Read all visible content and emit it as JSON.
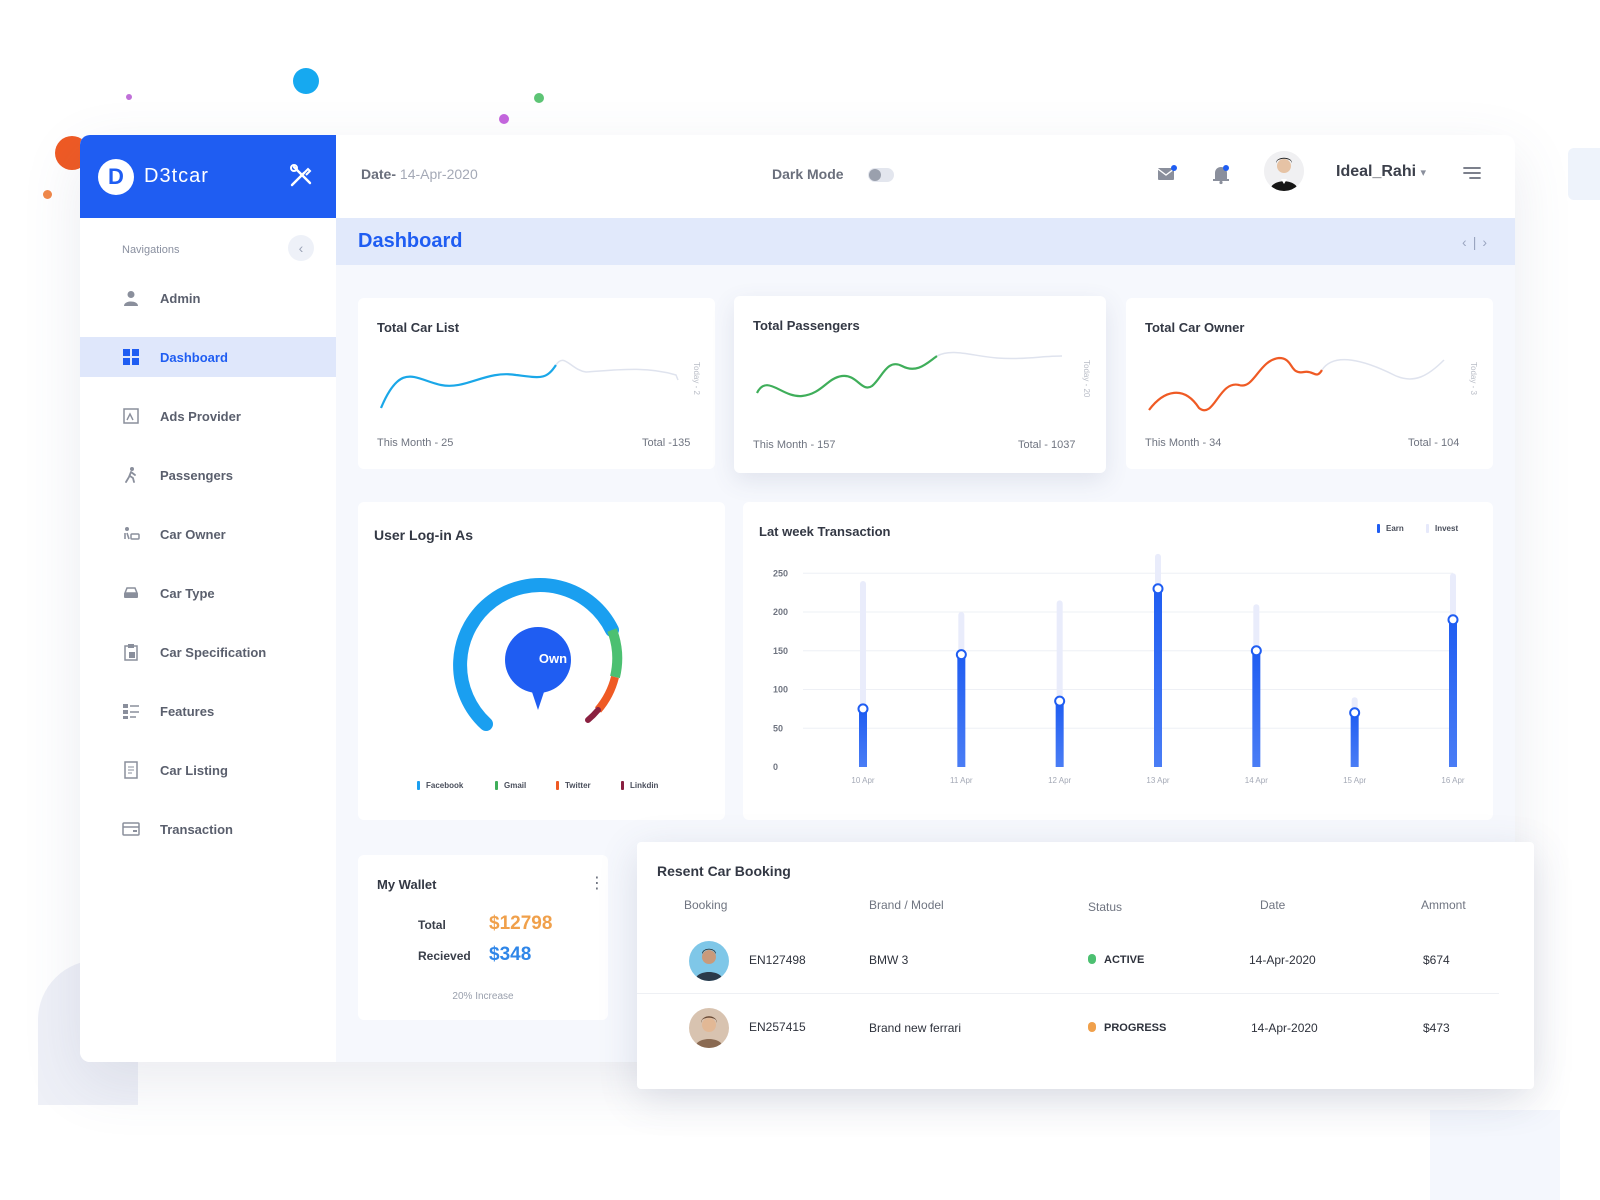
{
  "brand": {
    "name": "D3tcar",
    "logo_letter": "D",
    "color": "#1f5df2"
  },
  "sidebar": {
    "heading": "Navigations",
    "items": [
      {
        "label": "Admin",
        "icon": "user-icon",
        "active": false
      },
      {
        "label": "Dashboard",
        "icon": "grid-icon",
        "active": true
      },
      {
        "label": "Ads Provider",
        "icon": "ads-icon",
        "active": false
      },
      {
        "label": "Passengers",
        "icon": "walking-person-icon",
        "active": false
      },
      {
        "label": "Car Owner",
        "icon": "car-owner-icon",
        "active": false
      },
      {
        "label": "Car Type",
        "icon": "car-icon",
        "active": false
      },
      {
        "label": "Car Specification",
        "icon": "clipboard-icon",
        "active": false
      },
      {
        "label": "Features",
        "icon": "list-icon",
        "active": false
      },
      {
        "label": "Car Listing",
        "icon": "document-icon",
        "active": false
      },
      {
        "label": "Transaction",
        "icon": "card-icon",
        "active": false
      }
    ]
  },
  "topbar": {
    "date_label": "Date-",
    "date_value": "14-Apr-2020",
    "dark_mode_label": "Dark Mode",
    "dark_mode_on": false,
    "username": "Ideal_Rahi",
    "user_caret": "▾"
  },
  "page": {
    "title": "Dashboard",
    "prev": "‹",
    "sep": "|",
    "next": "›"
  },
  "stats": [
    {
      "title": "Total Car List",
      "this_month": "This Month - 25",
      "total": "Total -135",
      "side_label": "Today - 2",
      "color": "#1aa7e8"
    },
    {
      "title": "Total Passengers",
      "this_month": "This Month - 157",
      "total": "Total - 1037",
      "side_label": "Today - 20",
      "color": "#3fae5a"
    },
    {
      "title": "Total Car Owner",
      "this_month": "This Month -  34",
      "total": "Total - 104",
      "side_label": "Today - 3",
      "color": "#ef5a24"
    }
  ],
  "login": {
    "title": "User Log-in As",
    "center_label": "Own",
    "legend": [
      {
        "name": "Facebook",
        "color": "#1a9ff0"
      },
      {
        "name": "Gmail",
        "color": "#3fae5a"
      },
      {
        "name": "Twitter",
        "color": "#ef5a24"
      },
      {
        "name": "Linkdin",
        "color": "#8a2040"
      }
    ]
  },
  "transaction": {
    "title": "Lat week Transaction",
    "legend": [
      {
        "name": "Earn",
        "color": "#1f5df2"
      },
      {
        "name": "Invest",
        "color": "#e6e9fb"
      }
    ]
  },
  "chart_data": {
    "type": "bar",
    "categories": [
      "10 Apr",
      "11 Apr",
      "12 Apr",
      "13 Apr",
      "14 Apr",
      "15 Apr",
      "16 Apr"
    ],
    "series": [
      {
        "name": "Earn",
        "values": [
          75,
          145,
          85,
          230,
          150,
          70,
          190
        ]
      },
      {
        "name": "Invest",
        "values": [
          240,
          200,
          215,
          275,
          210,
          90,
          250
        ]
      }
    ],
    "yticks": [
      0,
      50,
      100,
      150,
      200,
      250
    ],
    "ylim": [
      0,
      280
    ],
    "grid": true,
    "legend_position": "top-right"
  },
  "wallet": {
    "title": "My Wallet",
    "menu": "⋮",
    "total_label": "Total",
    "total_value": "$12798",
    "total_color": "#f0a04b",
    "received_label": "Recieved",
    "received_value": "$348",
    "received_color": "#2f86e8",
    "note": "20% Increase"
  },
  "booking": {
    "title": "Resent Car Booking",
    "columns": {
      "booking": "Booking",
      "brand": "Brand / Model",
      "status": "Status",
      "date": "Date",
      "amount": "Ammont"
    },
    "rows": [
      {
        "id": "EN127498",
        "model": "BMW 3",
        "status": "ACTIVE",
        "status_color": "#4cc071",
        "date": "14-Apr-2020",
        "amount": "$674"
      },
      {
        "id": "EN257415",
        "model": "Brand new ferrari",
        "status": "PROGRESS",
        "status_color": "#f0a04b",
        "date": "14-Apr-2020",
        "amount": "$473"
      }
    ]
  }
}
